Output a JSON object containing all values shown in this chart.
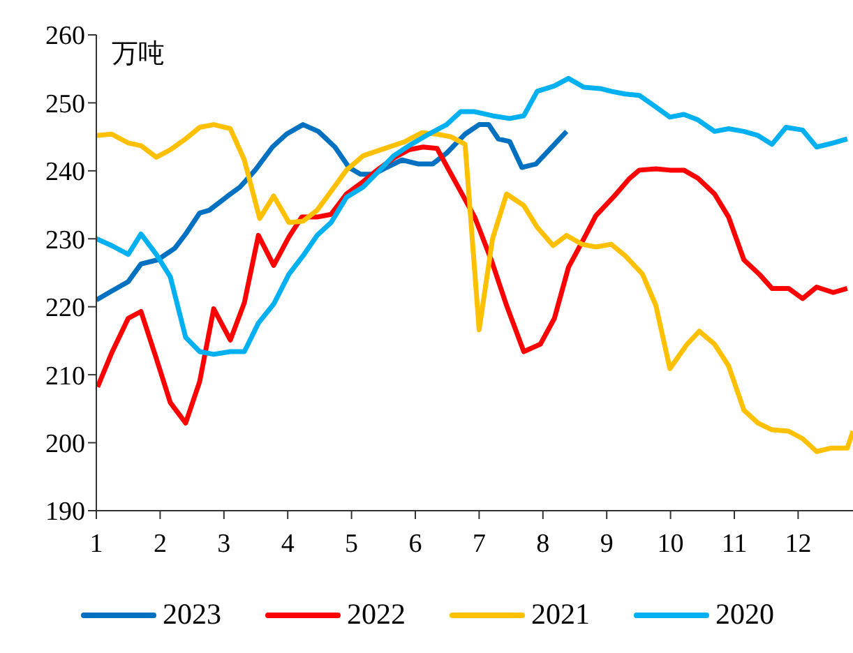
{
  "chart_data": {
    "type": "line",
    "ylabel": "万吨",
    "xlim": [
      1,
      12.86
    ],
    "xticks": [
      1,
      2,
      3,
      4,
      5,
      6,
      7,
      8,
      9,
      10,
      11,
      12
    ],
    "ylim": [
      190,
      260
    ],
    "yticks": [
      190,
      200,
      210,
      220,
      230,
      240,
      250,
      260
    ],
    "grid": false,
    "legend": "bottom",
    "marker": "none",
    "line_style": "solid",
    "series": [
      {
        "name": "2023",
        "color": "#0070c0",
        "x": [
          1,
          1.24,
          1.5,
          1.7,
          1.96,
          2.23,
          2.4,
          2.62,
          2.77,
          3.06,
          3.25,
          3.49,
          3.76,
          3.98,
          4.24,
          4.48,
          4.74,
          4.96,
          5.14,
          5.35,
          5.55,
          5.79,
          6.05,
          6.27,
          6.49,
          6.78,
          7,
          7.15,
          7.3,
          7.48,
          7.67,
          7.89,
          8.16,
          8.37
        ],
        "values": [
          221,
          222.3,
          223.7,
          226.3,
          226.9,
          228.6,
          230.7,
          233.8,
          234.2,
          236.3,
          237.6,
          240.1,
          243.5,
          245.4,
          246.8,
          245.8,
          243.5,
          240.5,
          239.5,
          239.5,
          240.5,
          241.6,
          241,
          241,
          242.6,
          245.4,
          246.8,
          246.8,
          244.7,
          244.3,
          240.5,
          241,
          243.7,
          245.8
        ]
      },
      {
        "name": "2022",
        "color": "#ff0000",
        "x": [
          1.02,
          1.24,
          1.5,
          1.7,
          1.94,
          2.16,
          2.4,
          2.62,
          2.84,
          3.1,
          3.32,
          3.54,
          3.78,
          4.02,
          4.22,
          4.46,
          4.68,
          4.92,
          5.18,
          5.4,
          5.68,
          5.9,
          6.12,
          6.34,
          6.65,
          6.93,
          7.19,
          7.43,
          7.7,
          7.96,
          8.18,
          8.4,
          8.64,
          8.83,
          9.12,
          9.36,
          9.51,
          9.77,
          9.99,
          10.21,
          10.43,
          10.69,
          10.91,
          11.15,
          11.39,
          11.59,
          11.85,
          12.07,
          12.29,
          12.55,
          12.77
        ],
        "values": [
          208.2,
          213.2,
          218.3,
          219.3,
          212.4,
          205.9,
          202.9,
          209,
          219.7,
          215.1,
          220.6,
          230.5,
          226.1,
          230.3,
          233.2,
          233.2,
          233.6,
          236.6,
          238.4,
          240.1,
          242,
          243.1,
          243.5,
          243.3,
          238,
          233.2,
          226.9,
          220.2,
          213.4,
          214.5,
          218.3,
          225.8,
          230,
          233.4,
          236.3,
          238.9,
          240.1,
          240.3,
          240.1,
          240.1,
          238.9,
          236.6,
          233.2,
          226.9,
          224.8,
          222.7,
          222.7,
          221.2,
          222.9,
          222.1,
          222.7
        ]
      },
      {
        "name": "2021",
        "color": "#ffc000",
        "x": [
          1,
          1.24,
          1.5,
          1.7,
          1.94,
          2.16,
          2.4,
          2.62,
          2.84,
          3.1,
          3.32,
          3.56,
          3.78,
          4.02,
          4.24,
          4.46,
          4.68,
          4.92,
          5.18,
          5.46,
          5.84,
          6.1,
          6.34,
          6.56,
          6.78,
          7,
          7.21,
          7.43,
          7.7,
          7.91,
          8.16,
          8.37,
          8.61,
          8.83,
          9.07,
          9.29,
          9.56,
          9.77,
          9.99,
          10.26,
          10.45,
          10.69,
          10.91,
          11.15,
          11.37,
          11.59,
          11.85,
          12.07,
          12.29,
          12.51,
          12.77,
          12.86
        ],
        "values": [
          245.2,
          245.4,
          244.1,
          243.7,
          242,
          243.1,
          244.7,
          246.4,
          246.8,
          246.2,
          241.6,
          233,
          236.3,
          232.4,
          232.6,
          234.2,
          237,
          240.1,
          242.2,
          243.1,
          244.3,
          245.6,
          245.4,
          245,
          243.9,
          216.6,
          230,
          236.6,
          234.9,
          231.7,
          229,
          230.5,
          229.2,
          228.8,
          229.2,
          227.5,
          224.8,
          220.2,
          210.9,
          214.5,
          216.4,
          214.5,
          211.3,
          204.8,
          202.9,
          201.9,
          201.7,
          200.6,
          198.7,
          199.2,
          199.2,
          201.7
        ]
      },
      {
        "name": "2020",
        "color": "#00b0f0",
        "x": [
          1,
          1.24,
          1.5,
          1.7,
          1.94,
          2.16,
          2.4,
          2.62,
          2.84,
          3.1,
          3.32,
          3.54,
          3.78,
          4.02,
          4.24,
          4.46,
          4.68,
          4.92,
          5.18,
          5.4,
          5.66,
          5.9,
          6.21,
          6.49,
          6.71,
          6.93,
          7.21,
          7.48,
          7.7,
          7.91,
          8.18,
          8.4,
          8.64,
          8.9,
          9.07,
          9.29,
          9.51,
          9.77,
          9.99,
          10.21,
          10.43,
          10.69,
          10.91,
          11.15,
          11.37,
          11.59,
          11.81,
          12.07,
          12.29,
          12.55,
          12.77
        ],
        "values": [
          230,
          229,
          227.7,
          230.7,
          227.7,
          224.4,
          215.5,
          213.4,
          213,
          213.4,
          213.4,
          217.6,
          220.4,
          224.8,
          227.5,
          230.5,
          232.4,
          236.1,
          237.6,
          239.7,
          242.2,
          243.7,
          245.4,
          246.8,
          248.7,
          248.7,
          248.1,
          247.7,
          248.1,
          251.7,
          252.5,
          253.6,
          252.3,
          252.1,
          251.7,
          251.3,
          251.1,
          249.4,
          247.9,
          248.3,
          247.5,
          245.8,
          246.2,
          245.8,
          245.2,
          243.9,
          246.4,
          246,
          243.5,
          244.1,
          244.7
        ]
      }
    ]
  }
}
